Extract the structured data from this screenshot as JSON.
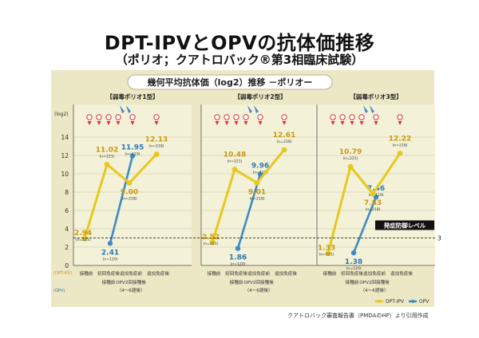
{
  "header": {
    "title": "DPT-IPVとOPVの抗体価推移",
    "subtitle": "（ポリオ；クアトロバック®第3相臨床試験）"
  },
  "source": "クアトロバック審査報告書（PMDAのHP）より引用作成",
  "chart_data": {
    "type": "line",
    "title": "幾何平均抗体価（log2）推移 －ポリオー",
    "ylabel": "(log2)",
    "ylim": [
      0,
      14
    ],
    "yticks": [
      0,
      2,
      4,
      6,
      8,
      10,
      12,
      14
    ],
    "grid": true,
    "legend_position": "bottom-right",
    "legend": [
      {
        "label": "DPT-IPV",
        "color": "#e8c81e"
      },
      {
        "label": "OPV",
        "color": "#3d8bc6"
      }
    ],
    "row_labels": {
      "dpt": "(DPT-IPV)",
      "opv": "(OPV)"
    },
    "reference_line": {
      "value": 3,
      "label": "発症防御レベル",
      "axis_label": "3"
    },
    "categories": [
      {
        "line1": "接種前",
        "line2": ""
      },
      {
        "line1": "初回免疫後",
        "line2": "接種前"
      },
      {
        "line1": "追加免疫前",
        "line2": "OPV2回接種後",
        "line3": "（4～6週後）"
      },
      {
        "line1": "追加免疫後",
        "line2": ""
      }
    ],
    "panels": [
      {
        "title": "【弱毒ポリオ1型】",
        "dpt": {
          "values": [
            2.94,
            11.02,
            9.0,
            12.13
          ],
          "labels": [
            "2.94",
            "11.02",
            "9.00",
            "12.13"
          ],
          "n": [
            "(n=221)",
            "(n=221)",
            "(n=218)",
            "(n=218)"
          ]
        },
        "opv": {
          "values": [
            2.41,
            11.95
          ],
          "labels": [
            "2.41",
            "11.95"
          ],
          "n": [
            "(n=120)",
            "(n=119)"
          ]
        }
      },
      {
        "title": "【弱毒ポリオ2型】",
        "dpt": {
          "values": [
            2.52,
            10.48,
            9.01,
            12.61
          ],
          "labels": [
            "2.52",
            "10.48",
            "9.01",
            "12.61"
          ],
          "n": [
            "(n=221)",
            "(n=221)",
            "(n=218)",
            "(n=218)"
          ]
        },
        "opv": {
          "values": [
            1.86,
            9.96
          ],
          "labels": [
            "1.86",
            "9.96"
          ],
          "n": [
            "(n=120)",
            "(n=119)"
          ]
        }
      },
      {
        "title": "【弱毒ポリオ3型】",
        "dpt": {
          "values": [
            1.33,
            10.79,
            7.83,
            12.22
          ],
          "labels": [
            "1.33",
            "10.79",
            "7.83",
            "12.22"
          ],
          "n": [
            "(n=221)",
            "(n=221)",
            "(n=218)",
            "(n=218)"
          ]
        },
        "opv": {
          "values": [
            1.38,
            7.46
          ],
          "labels": [
            "1.38",
            "7.46"
          ],
          "n": [
            "(n=120)",
            "(n=119)"
          ]
        }
      }
    ],
    "colors": {
      "dpt": "#e8c81e",
      "dpt_text": "#c99a10",
      "opv": "#3d8bc6",
      "opv_text": "#2f78b4",
      "panel_bg": "#f3f1d8",
      "frame_bg": "#ece7c4",
      "marker_red": "#d9333a"
    }
  }
}
